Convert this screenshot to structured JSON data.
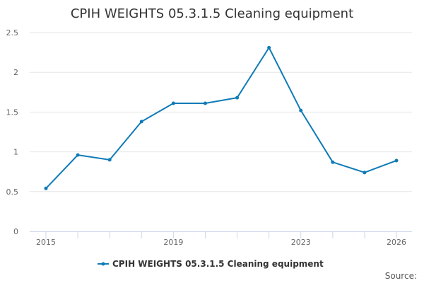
{
  "chart_data": {
    "type": "line",
    "title": "CPIH WEIGHTS 05.3.1.5 Cleaning equipment",
    "xlabel": "",
    "ylabel": "",
    "x": [
      2015,
      2016,
      2017,
      2018,
      2019,
      2020,
      2021,
      2022,
      2023,
      2024,
      2025,
      2026
    ],
    "x_tick_labels": [
      "2015",
      "2019",
      "2023",
      "2026"
    ],
    "y_tick_labels": [
      "0",
      "0.5",
      "1",
      "1.5",
      "2",
      "2.5"
    ],
    "ylim": [
      0,
      2.5
    ],
    "grid": true,
    "legend_position": "bottom-center",
    "series": [
      {
        "name": "CPIH WEIGHTS 05.3.1.5 Cleaning equipment",
        "color": "#0f7bb7",
        "values": [
          0.54,
          0.96,
          0.9,
          1.38,
          1.61,
          1.61,
          1.68,
          2.31,
          1.52,
          0.87,
          0.74,
          0.89
        ]
      }
    ]
  },
  "credits": "Source:"
}
